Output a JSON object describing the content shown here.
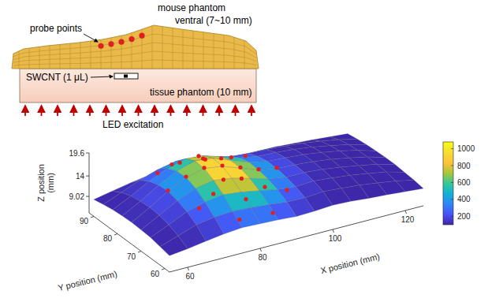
{
  "schematic": {
    "labels": {
      "probe_points": "probe points",
      "mouse_phantom": "mouse phantom",
      "ventral": "ventral (7~10 mm)",
      "swcnt": "SWCNT (1 μL)",
      "tissue_phantom": "tissue phantom (10 mm)",
      "led": "LED excitation"
    }
  },
  "chart_data": {
    "type": "surface",
    "grid": false,
    "x": [
      55,
      60,
      65,
      70,
      75,
      80,
      85,
      90,
      95,
      100,
      105,
      110,
      115,
      120,
      125
    ],
    "y": [
      58,
      62,
      66,
      70,
      74,
      78,
      82,
      86,
      90
    ],
    "z": [
      [
        9.0,
        9.5,
        10.2,
        10.8,
        11.2,
        11.0,
        10.8,
        10.5,
        10.6,
        10.9,
        10.7,
        10.3,
        10.0,
        9.6,
        9.2
      ],
      [
        9.5,
        11.0,
        12.5,
        13.2,
        13.5,
        13.2,
        12.8,
        12.3,
        12.2,
        12.5,
        12.2,
        11.8,
        11.2,
        10.5,
        9.6
      ],
      [
        10.0,
        12.0,
        14.0,
        15.2,
        15.8,
        15.3,
        14.5,
        13.6,
        13.2,
        13.4,
        13.0,
        12.5,
        11.8,
        11.0,
        9.8
      ],
      [
        10.2,
        12.6,
        15.0,
        16.8,
        17.6,
        17.0,
        15.8,
        14.5,
        13.8,
        13.8,
        13.4,
        12.8,
        12.0,
        11.2,
        10.0
      ],
      [
        10.3,
        12.8,
        15.6,
        17.8,
        18.8,
        18.2,
        16.6,
        15.0,
        14.2,
        14.0,
        13.6,
        13.0,
        12.2,
        11.3,
        10.0
      ],
      [
        10.2,
        12.6,
        15.4,
        17.6,
        19.0,
        18.5,
        16.8,
        15.2,
        14.3,
        14.0,
        13.6,
        13.0,
        12.2,
        11.2,
        9.9
      ],
      [
        10.0,
        12.2,
        14.6,
        16.6,
        17.8,
        17.4,
        16.0,
        14.6,
        13.8,
        13.6,
        13.2,
        12.6,
        11.8,
        10.9,
        9.7
      ],
      [
        9.6,
        11.4,
        13.2,
        14.6,
        15.5,
        15.2,
        14.2,
        13.2,
        12.8,
        12.6,
        12.3,
        11.8,
        11.2,
        10.4,
        9.4
      ],
      [
        9.1,
        10.0,
        10.8,
        11.5,
        12.0,
        11.8,
        11.3,
        10.8,
        10.6,
        10.5,
        10.4,
        10.1,
        9.8,
        9.4,
        9.0
      ]
    ],
    "intensity": [
      [
        101,
        106,
        122,
        159,
        206,
        229,
        206,
        159,
        122,
        106,
        101,
        100,
        100,
        100,
        100
      ],
      [
        102,
        114,
        153,
        241,
        354,
        408,
        354,
        241,
        153,
        114,
        102,
        100,
        100,
        100,
        100
      ],
      [
        104,
        125,
        199,
        364,
        574,
        676,
        574,
        364,
        199,
        125,
        104,
        100,
        100,
        100,
        100
      ],
      [
        106,
        137,
        245,
        484,
        790,
        938,
        790,
        484,
        245,
        137,
        106,
        101,
        100,
        100,
        100
      ],
      [
        107,
        142,
        264,
        535,
        881,
        1050,
        881,
        535,
        264,
        142,
        107,
        101,
        100,
        100,
        100
      ],
      [
        106,
        137,
        245,
        484,
        790,
        938,
        790,
        484,
        245,
        137,
        106,
        101,
        100,
        100,
        100
      ],
      [
        104,
        125,
        199,
        364,
        574,
        676,
        574,
        364,
        199,
        125,
        104,
        100,
        100,
        100,
        100
      ],
      [
        102,
        114,
        153,
        241,
        354,
        408,
        354,
        241,
        153,
        114,
        102,
        100,
        100,
        100,
        100
      ],
      [
        101,
        106,
        122,
        159,
        206,
        229,
        206,
        159,
        122,
        106,
        101,
        100,
        100,
        100,
        100
      ]
    ],
    "xlim": [
      55,
      125
    ],
    "ylim": [
      58,
      92
    ],
    "zlim": [
      5,
      19.6
    ],
    "xticks": [
      60,
      80,
      100,
      120
    ],
    "yticks": [
      60,
      70,
      80,
      90
    ],
    "zticks": [
      9.02,
      14,
      19.6
    ],
    "x_label": "X position (mm)",
    "y_label": "Y position (mm)",
    "z_label": "Z position (mm)",
    "colorbar": {
      "range": [
        100,
        1080
      ],
      "ticks": [
        200,
        400,
        600,
        800,
        1000
      ]
    },
    "probe_points": {
      "color": "#e02020",
      "x": [
        80,
        85,
        82.5,
        77.5,
        75,
        77.5,
        82.5,
        90,
        87.1,
        80,
        72.9,
        70,
        72.9,
        80,
        87.1,
        95,
        92.1,
        84.6,
        75.4,
        67.9,
        65,
        67.9,
        75.4,
        84.6,
        92.1
      ],
      "y": [
        74,
        74,
        78.3,
        78.3,
        74,
        69.7,
        69.7,
        74,
        81.1,
        84,
        81.1,
        74,
        66.9,
        64,
        66.9,
        74,
        82.8,
        88.3,
        88.3,
        82.8,
        74,
        65.2,
        59.7,
        59.7,
        65.2
      ]
    }
  }
}
